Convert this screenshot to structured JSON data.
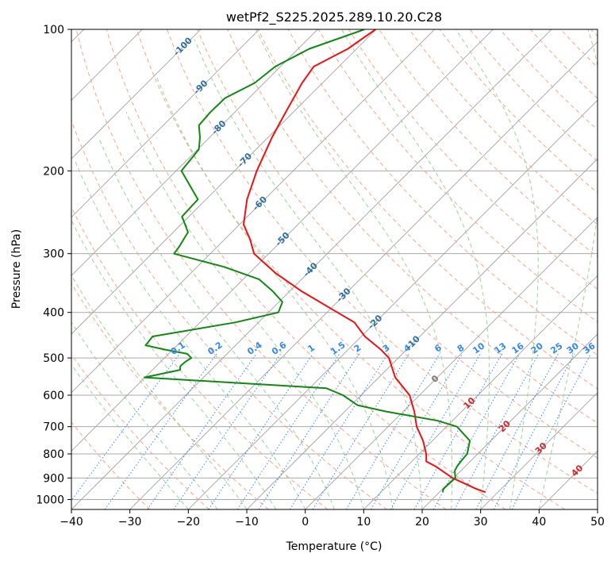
{
  "chart_data": {
    "type": "line",
    "subtype": "skew-T log-P diagram",
    "title": "wetPf2_S225.2025.289.10.20.C28",
    "xlabel": "Temperature (°C)",
    "ylabel": "Pressure (hPa)",
    "xlim": [
      -40,
      50
    ],
    "ylim": [
      1050,
      100
    ],
    "x_ticks": [
      -40,
      -30,
      -20,
      -10,
      0,
      10,
      20,
      30,
      40,
      50
    ],
    "y_ticks": [
      100,
      200,
      300,
      400,
      500,
      600,
      700,
      800,
      900,
      1000
    ],
    "colors": {
      "temperature": "#ee1111",
      "dewpoint": "#118811",
      "isotherm": "#999999",
      "dry_adiabat": "#f4a58a",
      "moist_adiabat": "#9bd19b",
      "mixing_ratio": "#3388ee",
      "isotherm_label_cold": "#2a6fa8",
      "isotherm_label_warm": "#d02828",
      "isotherm_label_zero": "#777777",
      "pressure_gridline": "#aaaaaa"
    },
    "isotherm_labels": [
      "-100",
      "-90",
      "-80",
      "-70",
      "-60",
      "-50",
      "-40",
      "-30",
      "-20",
      "-10",
      "0",
      "10",
      "20",
      "30",
      "40"
    ],
    "isotherm_label_pressures": [
      109,
      133,
      162,
      190,
      235,
      280,
      325,
      368,
      420,
      465,
      555,
      625,
      700,
      780,
      870
    ],
    "mixing_ratio_labels": [
      "0.1",
      "0.2",
      "0.4",
      "0.6",
      "1",
      "1.5",
      "2",
      "3",
      "4",
      "6",
      "8",
      "10",
      "13",
      "16",
      "20",
      "25",
      "30",
      "36"
    ],
    "mixing_ratio_label_pressure": 490,
    "series": [
      {
        "name": "temperature",
        "pressure": [
          100,
          110,
          120,
          130,
          150,
          170,
          200,
          230,
          260,
          280,
          300,
          330,
          360,
          400,
          420,
          450,
          480,
          500,
          550,
          600,
          650,
          700,
          750,
          800,
          830,
          850,
          900,
          950,
          965
        ],
        "temperature": [
          -70.1,
          -71.5,
          -74.3,
          -73.5,
          -71.3,
          -69.3,
          -66.2,
          -63.0,
          -59.3,
          -55.6,
          -52.5,
          -45.5,
          -38.1,
          -28.2,
          -23.6,
          -19.4,
          -14.4,
          -11.6,
          -7.2,
          -1.7,
          1.9,
          4.9,
          8.4,
          11.2,
          12.5,
          14.9,
          19.8,
          25.8,
          27.9
        ]
      },
      {
        "name": "dewpoint",
        "pressure": [
          100,
          110,
          120,
          130,
          140,
          150,
          160,
          170,
          180,
          200,
          230,
          250,
          270,
          290,
          300,
          320,
          340,
          360,
          380,
          400,
          420,
          450,
          470,
          480,
          490,
          500,
          510,
          520,
          530,
          550,
          580,
          600,
          630,
          650,
          680,
          700,
          750,
          800,
          830,
          850,
          870,
          900,
          950,
          965
        ],
        "temperature": [
          -72.0,
          -78.1,
          -80.9,
          -81.6,
          -84.1,
          -84.2,
          -83.9,
          -81.6,
          -79.8,
          -79.1,
          -71.4,
          -71.2,
          -67.5,
          -66.5,
          -66.2,
          -55.4,
          -47.3,
          -43.0,
          -39.4,
          -38.3,
          -43.9,
          -55.7,
          -55.4,
          -51.3,
          -46.8,
          -45.4,
          -45.8,
          -45.9,
          -45.3,
          -50.1,
          -17.1,
          -13.1,
          -8.9,
          -2.9,
          7.5,
          11.8,
          16.4,
          18.2,
          18.4,
          18.6,
          19.0,
          20.3,
          20.1,
          20.6
        ]
      }
    ]
  }
}
